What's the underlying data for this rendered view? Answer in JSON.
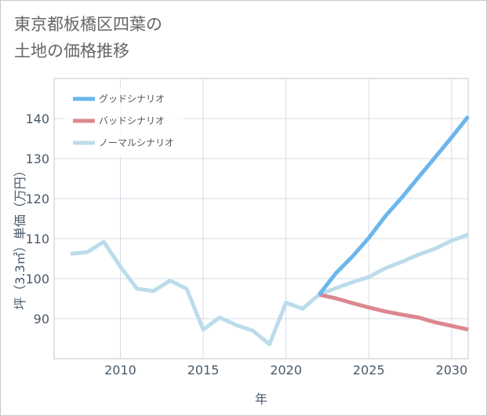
{
  "title_line1": "東京都板橋区四葉の",
  "title_line2": "土地の価格推移",
  "chart_data": {
    "type": "line",
    "title": "東京都板橋区四葉の土地の価格推移",
    "xlabel": "年",
    "ylabel": "坪（3.3㎡）単価（万円）",
    "xlim": [
      2006,
      2031
    ],
    "ylim": [
      80,
      150
    ],
    "x_ticks": [
      2010,
      2015,
      2020,
      2025,
      2030
    ],
    "y_ticks": [
      90,
      100,
      110,
      120,
      130,
      140
    ],
    "legend_position": "top-left",
    "series": [
      {
        "name": "グッドシナリオ",
        "color": "#6bb6ec",
        "x": [
          2022,
          2023,
          2024,
          2025,
          2026,
          2027,
          2028,
          2029,
          2030,
          2031
        ],
        "values": [
          96.0,
          101.3,
          105.5,
          110.2,
          115.6,
          120.3,
          125.3,
          130.3,
          135.3,
          140.5
        ]
      },
      {
        "name": "バッドシナリオ",
        "color": "#dc8790",
        "x": [
          2022,
          2023,
          2024,
          2025,
          2026,
          2027,
          2028,
          2029,
          2030,
          2031
        ],
        "values": [
          96.0,
          95.1,
          93.9,
          92.8,
          91.8,
          91.0,
          90.3,
          89.1,
          88.2,
          87.3
        ]
      },
      {
        "name": "ノーマルシナリオ",
        "color": "#bcdcea",
        "x": [
          2007,
          2008,
          2009,
          2010,
          2011,
          2012,
          2013,
          2014,
          2015,
          2016,
          2017,
          2018,
          2019,
          2020,
          2021,
          2022,
          2023,
          2024,
          2025,
          2026,
          2027,
          2028,
          2029,
          2030,
          2031
        ],
        "values": [
          106.2,
          106.6,
          109.2,
          103.0,
          97.5,
          96.9,
          99.5,
          97.5,
          87.3,
          90.3,
          88.4,
          87.0,
          83.6,
          94.0,
          92.5,
          96.0,
          97.6,
          99.1,
          100.4,
          102.6,
          104.2,
          106.0,
          107.5,
          109.5,
          111.0
        ]
      }
    ]
  }
}
